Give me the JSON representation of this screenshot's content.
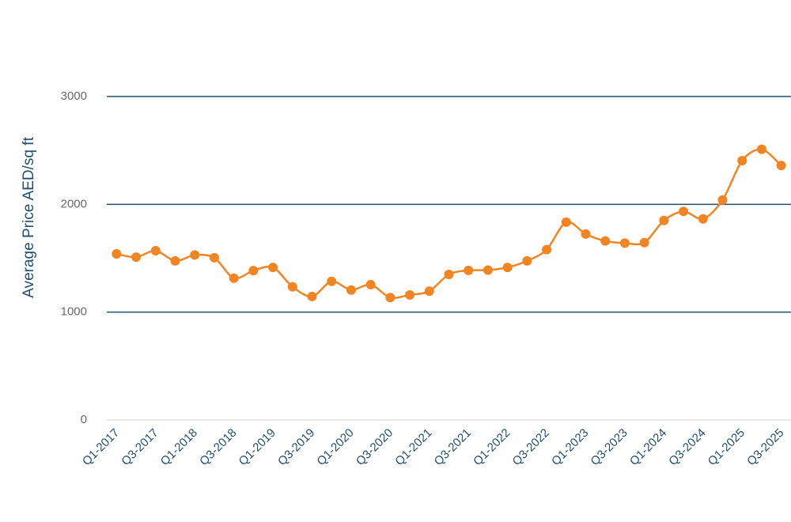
{
  "chart_data": {
    "type": "line",
    "ylabel": "Average Price AED/sq ft",
    "categories": [
      "Q1-2017",
      null,
      "Q3-2017",
      null,
      "Q1-2018",
      null,
      "Q3-2018",
      null,
      "Q1-2019",
      null,
      "Q3-2019",
      null,
      "Q1-2020",
      null,
      "Q3-2020",
      null,
      "Q1-2021",
      null,
      "Q3-2021",
      null,
      "Q1-2022",
      null,
      "Q3-2022",
      null,
      "Q1-2023",
      null,
      "Q3-2023",
      null,
      "Q1-2024",
      null,
      "Q3-2024",
      null,
      "Q1-2025",
      null,
      "Q3-2025"
    ],
    "values": [
      1540,
      1510,
      1570,
      1475,
      1530,
      1505,
      1315,
      1385,
      1415,
      1235,
      1145,
      1285,
      1205,
      1255,
      1135,
      1160,
      1195,
      1350,
      1387,
      1390,
      1415,
      1475,
      1580,
      1835,
      1725,
      1660,
      1640,
      1645,
      1850,
      1935,
      1865,
      2040,
      2405,
      2510,
      2360
    ],
    "color": "#f28522",
    "ylim": [
      0,
      3000
    ],
    "yticks": [
      0,
      1000,
      2000,
      3000
    ],
    "grid": true
  }
}
